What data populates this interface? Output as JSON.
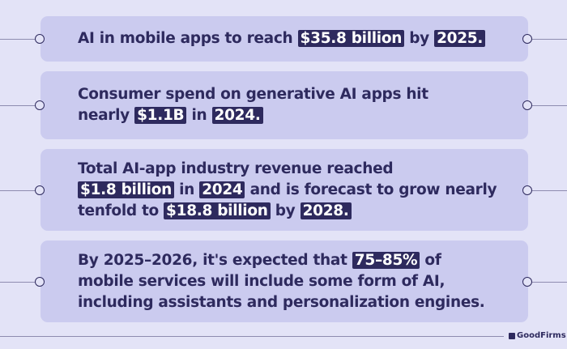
{
  "facts": [
    {
      "lines": [
        [
          {
            "t": "AI in mobile apps to reach "
          },
          {
            "t": "$35.8 billion",
            "h": true
          },
          {
            "t": " by "
          },
          {
            "t": "2025.",
            "h": true
          }
        ]
      ]
    },
    {
      "lines": [
        [
          {
            "t": "Consumer spend on generative AI apps hit"
          }
        ],
        [
          {
            "t": "nearly "
          },
          {
            "t": "$1.1B",
            "h": true
          },
          {
            "t": " in "
          },
          {
            "t": "2024.",
            "h": true
          }
        ]
      ]
    },
    {
      "lines": [
        [
          {
            "t": "Total AI-app industry revenue reached"
          }
        ],
        [
          {
            "t": "$1.8 billion",
            "h": true
          },
          {
            "t": " in "
          },
          {
            "t": "2024",
            "h": true
          },
          {
            "t": " and is forecast to grow nearly"
          }
        ],
        [
          {
            "t": "tenfold to "
          },
          {
            "t": "$18.8 billion",
            "h": true
          },
          {
            "t": " by "
          },
          {
            "t": "2028.",
            "h": true
          }
        ]
      ]
    },
    {
      "lines": [
        [
          {
            "t": "By 2025–2026, it's expected that "
          },
          {
            "t": "75–85%",
            "h": true
          },
          {
            "t": " of"
          }
        ],
        [
          {
            "t": "mobile services will include some form of AI,"
          }
        ],
        [
          {
            "t": "including assistants and personalization engines."
          }
        ]
      ]
    }
  ],
  "brand": "GoodFirms",
  "colors": {
    "background": "#e3e3f7",
    "card": "#cbcbef",
    "text": "#2e2a5e",
    "highlight": "#2e2a5e"
  }
}
